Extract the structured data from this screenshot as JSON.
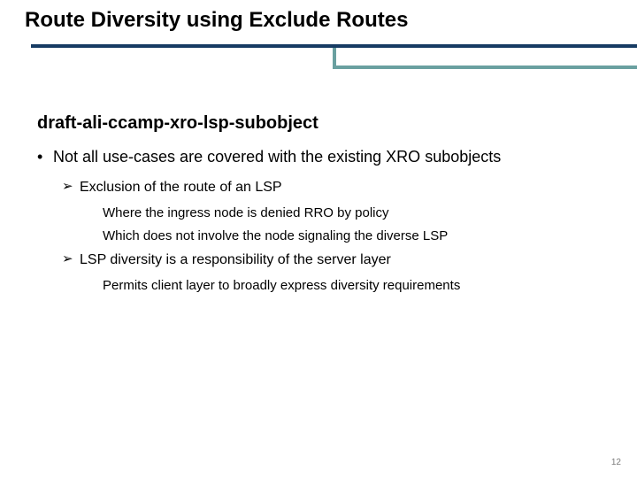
{
  "title": "Route Diversity using Exclude Routes",
  "subTitle": "draft-ali-ccamp-xro-lsp-subobject",
  "bullets": {
    "b1_0": "Not all use-cases are covered with the existing XRO subobjects",
    "b2_0": "Exclusion of the route of an LSP",
    "b3_0": "Where the ingress node is denied RRO by policy",
    "b3_1": "Which does not involve the node signaling the diverse LSP",
    "b2_1": "LSP diversity is a responsibility of the server layer",
    "b3_2": "Permits client layer to broadly express diversity requirements"
  },
  "pageNumber": "12",
  "colors": {
    "ruleMain": "#163b63",
    "ruleAccent": "#6aa0a0",
    "text": "#000000",
    "pageNum": "#7a7a7a",
    "background": "#ffffff"
  }
}
